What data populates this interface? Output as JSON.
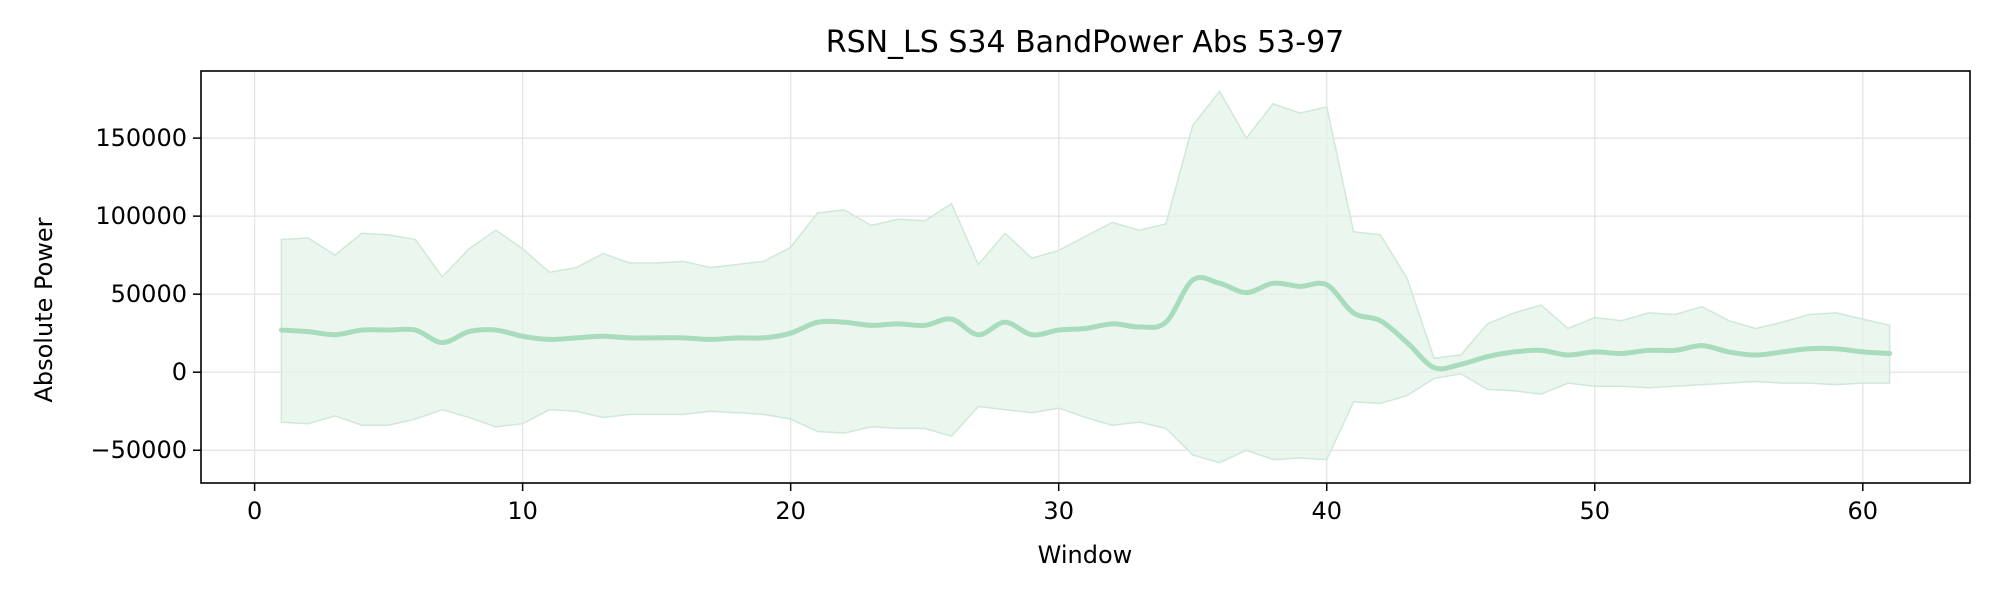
{
  "chart_data": {
    "type": "line",
    "title": "RSN_LS S34 BandPower Abs 53-97",
    "xlabel": "Window",
    "ylabel": "Absolute Power",
    "xlim": [
      -2,
      64
    ],
    "ylim": [
      -71000,
      193000
    ],
    "xticks": [
      0,
      10,
      20,
      30,
      40,
      50,
      60
    ],
    "xtick_labels": [
      "0",
      "10",
      "20",
      "30",
      "40",
      "50",
      "60"
    ],
    "yticks": [
      -50000,
      0,
      50000,
      100000,
      150000
    ],
    "ytick_labels": [
      "−50000",
      "0",
      "50000",
      "100000",
      "150000"
    ],
    "grid": true,
    "legend": "none",
    "colors": {
      "line": "#a8dcbc",
      "band": "#e3f2e8",
      "band_edge": "#cfe9d9"
    },
    "series": [
      {
        "x": [
          1,
          2,
          3,
          4,
          5,
          6,
          7,
          8,
          9,
          10,
          11,
          12,
          13,
          14,
          15,
          16,
          17,
          18,
          19,
          20,
          21,
          22,
          23,
          24,
          25,
          26,
          27,
          28,
          29,
          30,
          31,
          32,
          33,
          34,
          35,
          36,
          37,
          38,
          39,
          40,
          41,
          42,
          43,
          44,
          45,
          46,
          47,
          48,
          49,
          50,
          51,
          52,
          53,
          54,
          55,
          56,
          57,
          58,
          59,
          60,
          61
        ],
        "mean": [
          27000,
          26000,
          24000,
          27000,
          27000,
          27000,
          19000,
          26000,
          27000,
          23000,
          21000,
          22000,
          23000,
          22000,
          22000,
          22000,
          21000,
          22000,
          22000,
          25000,
          32000,
          32000,
          30000,
          31000,
          30000,
          34000,
          24000,
          32000,
          24000,
          27000,
          28000,
          31000,
          29000,
          32000,
          59000,
          57000,
          51000,
          57000,
          55000,
          56000,
          38000,
          33000,
          19000,
          3000,
          5000,
          10000,
          13000,
          14000,
          11000,
          13000,
          12000,
          14000,
          14000,
          17000,
          13000,
          11000,
          13000,
          15000,
          15000,
          13000,
          12000
        ],
        "upper": [
          85000,
          86000,
          75000,
          89000,
          88000,
          85000,
          61000,
          79000,
          91000,
          79000,
          64000,
          67000,
          76000,
          70000,
          70000,
          71000,
          67000,
          69000,
          71000,
          80000,
          102000,
          104000,
          94000,
          98000,
          97000,
          108000,
          69000,
          89000,
          73000,
          78000,
          87000,
          96000,
          91000,
          95000,
          158000,
          180000,
          150000,
          172000,
          166000,
          170000,
          90000,
          88000,
          60000,
          9000,
          11000,
          31000,
          38000,
          43000,
          28000,
          35000,
          33000,
          38000,
          37000,
          42000,
          33000,
          28000,
          32000,
          37000,
          38000,
          34000,
          30000
        ],
        "lower": [
          -32000,
          -33000,
          -28000,
          -34000,
          -34000,
          -30000,
          -24000,
          -29000,
          -35000,
          -33000,
          -24000,
          -25000,
          -29000,
          -27000,
          -27000,
          -27000,
          -25000,
          -26000,
          -27000,
          -30000,
          -38000,
          -39000,
          -35000,
          -36000,
          -36000,
          -41000,
          -22000,
          -24000,
          -26000,
          -23000,
          -29000,
          -34000,
          -32000,
          -36000,
          -53000,
          -58000,
          -50000,
          -56000,
          -55000,
          -56000,
          -19000,
          -20000,
          -15000,
          -4000,
          -1000,
          -11000,
          -12000,
          -14000,
          -7000,
          -9000,
          -9000,
          -10000,
          -9000,
          -8000,
          -7000,
          -6000,
          -7000,
          -7000,
          -8000,
          -7000,
          -7000
        ]
      }
    ]
  }
}
